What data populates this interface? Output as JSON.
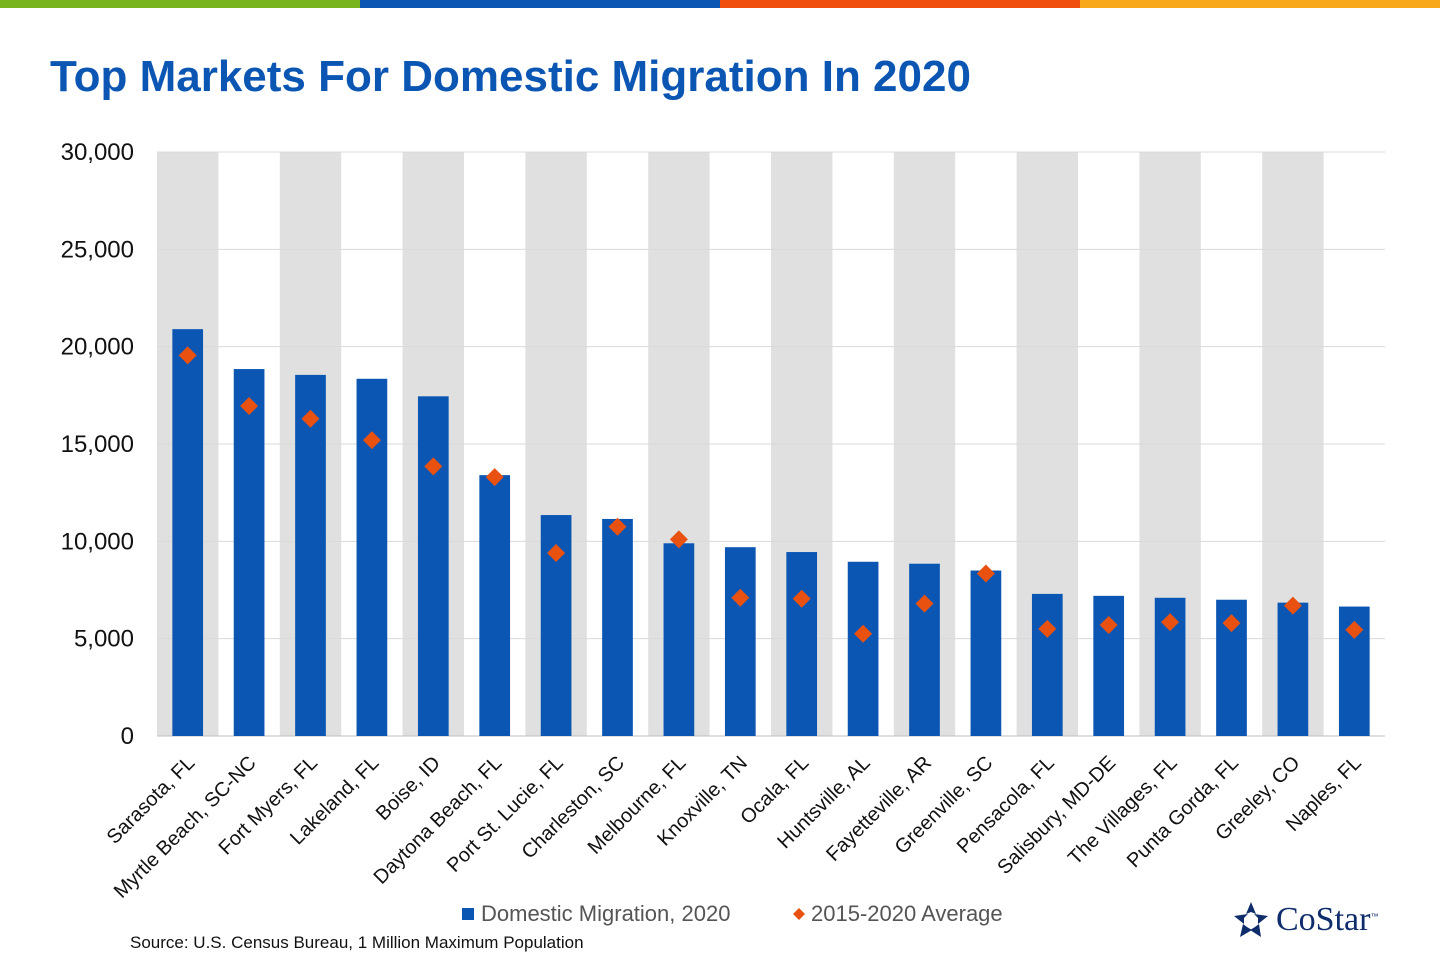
{
  "header": {
    "colors": [
      "#78b41e",
      "#0b56b3",
      "#f04e0c",
      "#f7a81b"
    ]
  },
  "title": "Top Markets For Domestic Migration In 2020",
  "source": "Source: U.S. Census Bureau, 1 Million Maximum Population",
  "logo": {
    "text": "CoStar",
    "tm": "™"
  },
  "chart_data": {
    "type": "bar",
    "categories": [
      "Sarasota, FL",
      "Myrtle Beach, SC-NC",
      "Fort Myers, FL",
      "Lakeland, FL",
      "Boise, ID",
      "Daytona Beach, FL",
      "Port St. Lucie, FL",
      "Charleston, SC",
      "Melbourne, FL",
      "Knoxville, TN",
      "Ocala, FL",
      "Huntsville, AL",
      "Fayetteville, AR",
      "Greenville, SC",
      "Pensacola, FL",
      "Salisbury, MD-DE",
      "The Villages, FL",
      "Punta Gorda, FL",
      "Greeley, CO",
      "Naples, FL"
    ],
    "series": [
      {
        "name": "Domestic Migration, 2020",
        "kind": "bar",
        "color": "#0b56b3",
        "values": [
          20900,
          18850,
          18550,
          18350,
          17450,
          13400,
          11350,
          11150,
          9900,
          9700,
          9450,
          8950,
          8850,
          8500,
          7300,
          7200,
          7100,
          7000,
          6850,
          6650
        ]
      },
      {
        "name": "2015-2020 Average",
        "kind": "marker",
        "color": "#e8510f",
        "values": [
          19550,
          16950,
          16300,
          15200,
          13850,
          13300,
          9400,
          10750,
          10100,
          7100,
          7050,
          5250,
          6800,
          8350,
          5500,
          5700,
          5850,
          5800,
          6700,
          5450
        ]
      }
    ],
    "ylim": [
      0,
      30000
    ],
    "yticks": [
      0,
      5000,
      10000,
      15000,
      20000,
      25000,
      30000
    ],
    "ytick_labels": [
      "0",
      "5,000",
      "10,000",
      "15,000",
      "20,000",
      "25,000",
      "30,000"
    ],
    "band_color": "#e0e0e0",
    "grid": true,
    "legend": "bottom-center"
  }
}
